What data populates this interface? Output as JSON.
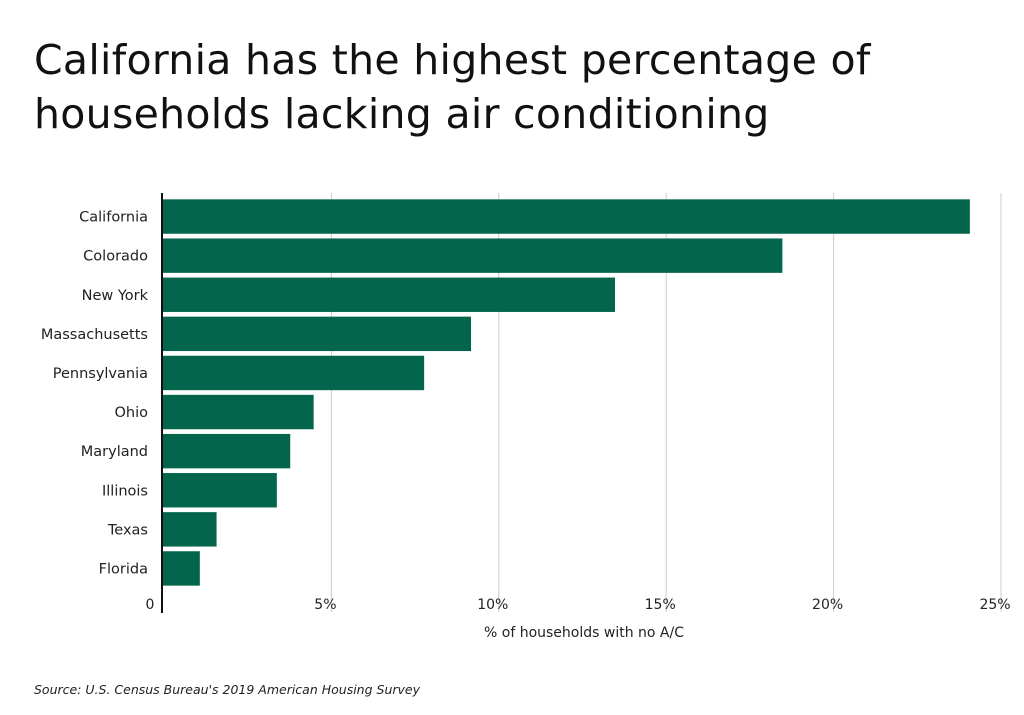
{
  "title": "California has the highest percentage of households lacking air conditioning",
  "source": "Source:  U.S. Census Bureau's 2019 American Housing Survey",
  "colors": {
    "bar": "#03654b",
    "grid": "#cccccc",
    "axis": "#111111"
  },
  "chart_data": {
    "type": "bar",
    "orientation": "horizontal",
    "categories": [
      "California",
      "Colorado",
      "New York",
      "Massachusetts",
      "Pennsylvania",
      "Ohio",
      "Maryland",
      "Illinois",
      "Texas",
      "Florida"
    ],
    "values": [
      24.1,
      18.5,
      13.5,
      9.2,
      7.8,
      4.5,
      3.8,
      3.4,
      1.6,
      1.1
    ],
    "xlabel": "% of households with no A/C",
    "ylabel": "",
    "xlim": [
      0,
      25
    ],
    "xticks": [
      0,
      5,
      10,
      15,
      20,
      25
    ],
    "xtick_labels": [
      "0",
      "5%",
      "10%",
      "15%",
      "20%",
      "25%"
    ],
    "grid": true
  }
}
